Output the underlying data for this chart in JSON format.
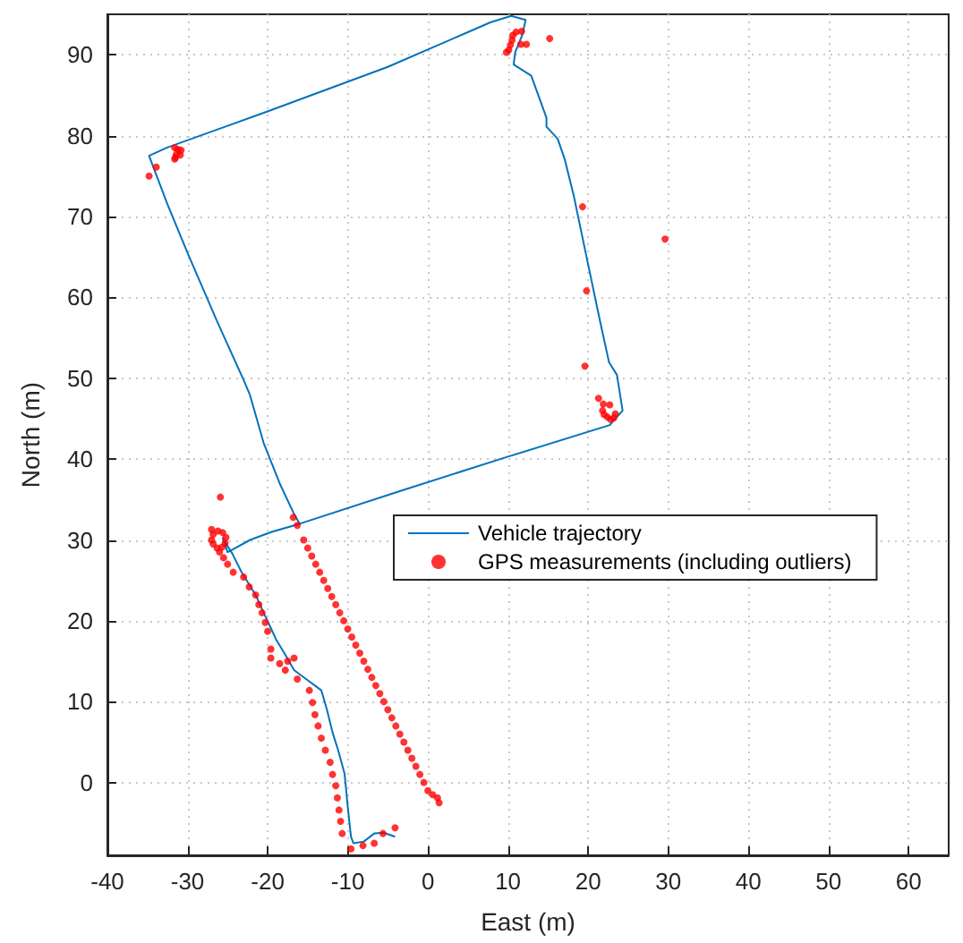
{
  "chart_data": {
    "type": "line",
    "xlabel": "East (m)",
    "ylabel": "North (m)",
    "xlim": [
      -40,
      65
    ],
    "xticks": [
      -40,
      -30,
      -20,
      -10,
      0,
      10,
      20,
      30,
      40,
      50,
      60
    ],
    "ylim": [
      -9,
      95
    ],
    "yticks": [
      0,
      10,
      20,
      30,
      40,
      50,
      60,
      70,
      80,
      90
    ],
    "grid": true,
    "legend": "bottom right",
    "series": [
      {
        "name": "Vehicle trajectory",
        "color": "#0072bd",
        "marker": "none",
        "line_style": "solid",
        "x": [
          -4.1,
          -5.5,
          -6.7,
          -8,
          -9.3,
          -9.6,
          -10,
          -10.4,
          -11.2,
          -11.9,
          -12.6,
          -13.3,
          -15.2,
          -16.7,
          -17.8,
          -18.9,
          -19.6,
          -20.5,
          -21.5,
          -23.3,
          -24.4,
          -25.6,
          -25,
          -24.4,
          -22.2,
          -19.5,
          -16,
          -16.7,
          -18.5,
          -20.5,
          -22.2,
          -23,
          -26.3,
          -30,
          -32.5,
          -34.8,
          -32.6,
          -20,
          -5,
          7.8,
          10.4,
          12.2,
          11.8,
          10.9,
          10.7,
          12.9,
          14.8,
          14.8,
          16.2,
          17.1,
          18.2,
          19.8,
          21.5,
          22.6,
          23.6,
          24.3,
          22.7,
          10,
          -3,
          -16
        ],
        "values": [
          -6.7,
          -6.2,
          -6.3,
          -7.3,
          -7.5,
          -6.7,
          -3,
          1.1,
          4,
          6.2,
          9,
          11.4,
          12.8,
          13.9,
          15.8,
          17.6,
          19.1,
          21,
          23.2,
          26.1,
          28.3,
          30.2,
          28.5,
          28.8,
          30,
          31,
          32,
          33.2,
          37,
          42,
          47.9,
          49.8,
          57,
          65.5,
          71.5,
          77.5,
          78.5,
          83,
          88.5,
          94,
          94.8,
          94.3,
          92.5,
          90.3,
          88.8,
          87.4,
          82.2,
          81.1,
          79.6,
          77,
          72.6,
          65,
          57,
          52,
          50.4,
          46,
          44.2,
          40.3,
          36.2,
          32
        ]
      },
      {
        "name": "GPS measurements (including outliers)",
        "type": "scatter",
        "color": "#ff0000",
        "marker": "circle",
        "x": [
          9.8,
          10.1,
          10.3,
          10.5,
          10.6,
          11,
          11.7,
          11.6,
          12.3,
          15.2,
          -31.6,
          -31.2,
          -30.8,
          -31.4,
          -30.9,
          -31.5,
          -31.6,
          -34.8,
          -33.9,
          19.3,
          29.6,
          19.8,
          19.6,
          21.3,
          21.9,
          22.7,
          21.8,
          22,
          22.4,
          22.8,
          23.2,
          23.4,
          -25.9,
          -27,
          -27,
          -26.8,
          -26.3,
          -25.7,
          -25.3,
          -25.2,
          -25.6,
          -26.2,
          -26.8,
          -26,
          -25.5,
          -25,
          -24.3,
          -23,
          -22.3,
          -21.5,
          -21.1,
          -20.7,
          -20.3,
          -20,
          -19.6,
          -19.6,
          -18.5,
          -17.5,
          -16.7,
          -17.8,
          -16.3,
          -14.8,
          -14.4,
          -14.1,
          -13.7,
          -13.3,
          -12.8,
          -12.2,
          -11.9,
          -11.5,
          -11.3,
          -11.1,
          -10.9,
          -10.7,
          -9.6,
          -8.1,
          -6.7,
          -5.6,
          -4.1,
          -16.8,
          -16.3,
          -15.5,
          -15,
          -14.5,
          -14,
          -13.5,
          -13,
          -12.5,
          -12,
          -11.5,
          -11,
          -10.5,
          -10,
          -9.5,
          -9,
          -8.5,
          -8,
          -7.5,
          -7,
          -6.5,
          -6,
          -5.5,
          -5,
          -4.5,
          -4,
          -3.5,
          -3,
          -2.5,
          -2,
          -1.5,
          -1,
          -0.5,
          0,
          0.6,
          1.2,
          1.4
        ],
        "values": [
          90.3,
          90.6,
          91.2,
          91.8,
          92.4,
          92.8,
          92.9,
          91.3,
          91.3,
          92,
          78.5,
          78.3,
          78.2,
          77.7,
          77.6,
          77.3,
          77.1,
          75,
          76.1,
          71.2,
          67.2,
          60.8,
          51.5,
          47.5,
          46.8,
          46.7,
          46,
          45.5,
          45.2,
          44.9,
          45.1,
          45.6,
          35.3,
          31.3,
          30,
          29.5,
          29,
          29.1,
          29.6,
          30.3,
          30.9,
          31.1,
          30.7,
          28.5,
          27.8,
          27,
          26,
          25.4,
          24.2,
          23.2,
          22,
          21,
          19.8,
          18.7,
          16.5,
          15.4,
          14.7,
          15,
          15.4,
          13.9,
          12.8,
          11.4,
          9.9,
          8.4,
          7,
          5.5,
          4,
          2.5,
          1,
          -0.4,
          -1.9,
          -3.4,
          -4.8,
          -6.3,
          -8.2,
          -7.8,
          -7.5,
          -6.3,
          -5.6,
          32.8,
          31.8,
          30,
          29,
          28,
          27,
          26,
          25,
          24,
          23,
          22,
          21,
          20,
          19,
          18,
          17,
          16,
          15,
          14,
          13,
          12,
          11,
          10,
          9,
          8,
          7,
          6,
          5,
          4,
          3,
          2,
          1,
          0,
          -1,
          -1.5,
          -1.9,
          -2.5
        ]
      }
    ]
  }
}
